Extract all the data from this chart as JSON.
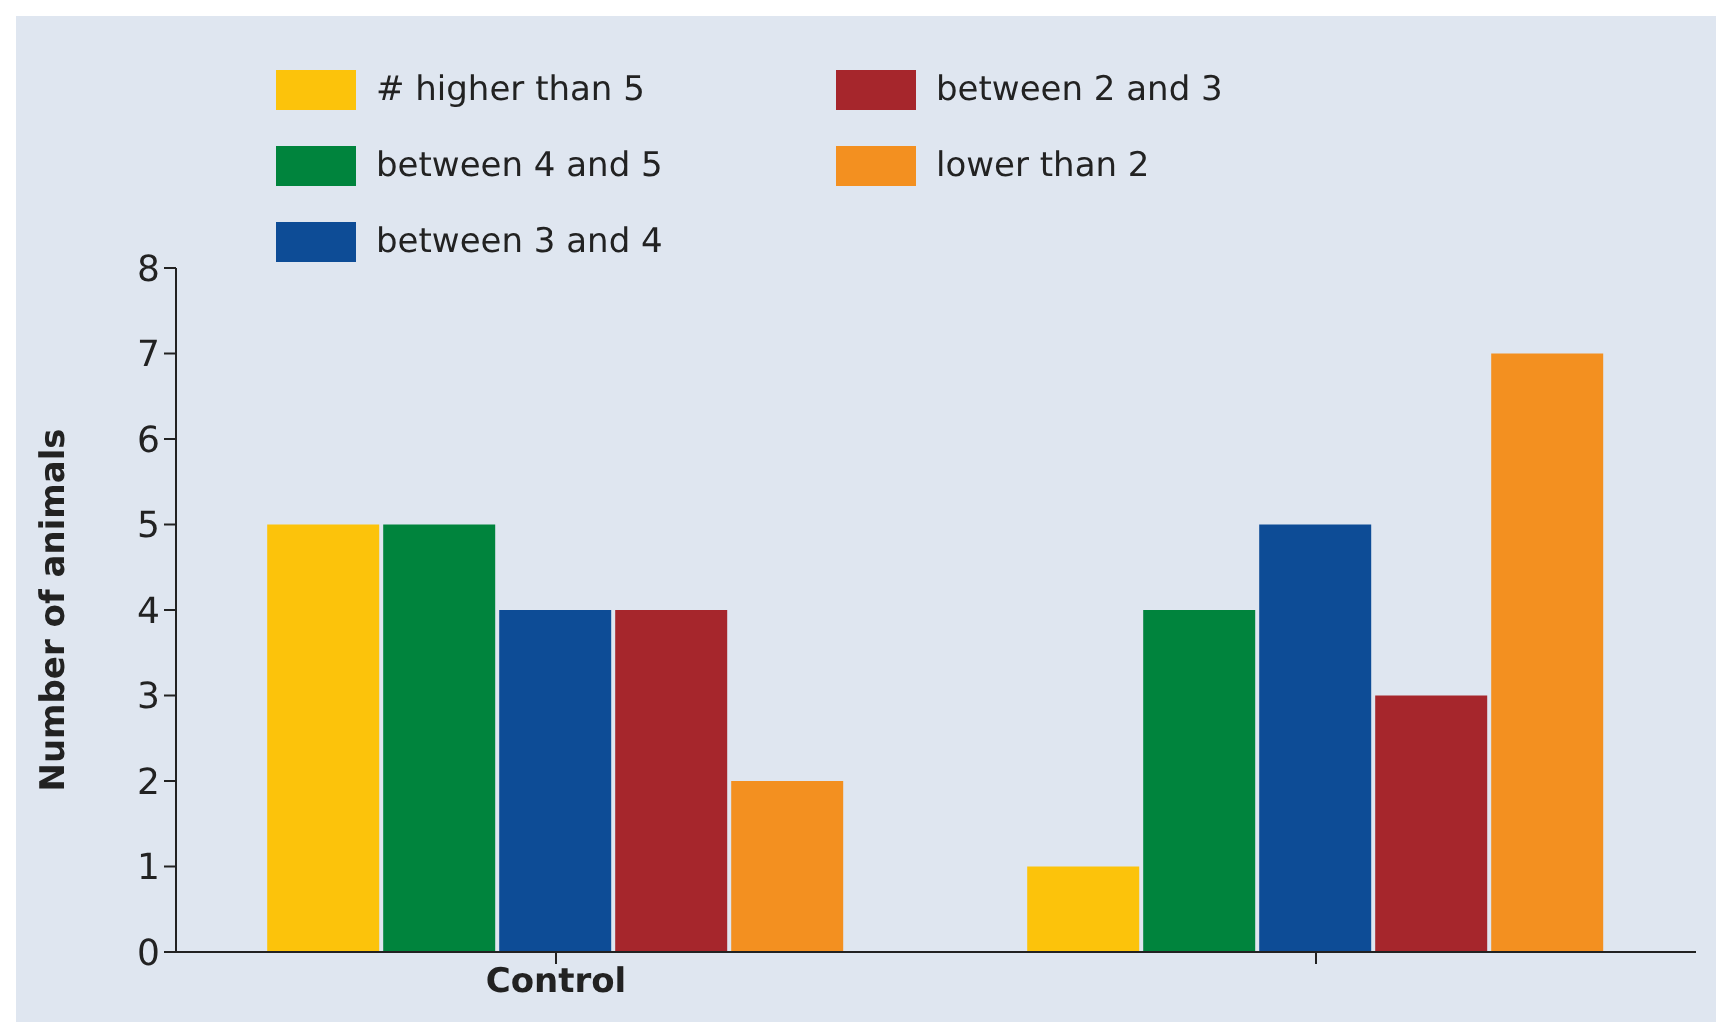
{
  "chart_data": {
    "type": "bar",
    "ylabel": "Number of animals",
    "categories": [
      "Control",
      null
    ],
    "series": [
      {
        "name": "# higher than 5",
        "color": "#fcc30b",
        "values": [
          5,
          1
        ]
      },
      {
        "name": "between 4 and 5",
        "color": "#00843d",
        "values": [
          5,
          4
        ]
      },
      {
        "name": "between 3 and 4",
        "color": "#0d4c96",
        "values": [
          4,
          5
        ]
      },
      {
        "name": "between 2 and 3",
        "color": "#a6262c",
        "values": [
          4,
          3
        ]
      },
      {
        "name": "lower than 2",
        "color": "#f39020",
        "values": [
          2,
          7
        ]
      }
    ],
    "ylim": [
      0,
      8
    ],
    "yticks": [
      0,
      1,
      2,
      3,
      4,
      5,
      6,
      7,
      8
    ],
    "grid": false,
    "legend": "top left"
  }
}
